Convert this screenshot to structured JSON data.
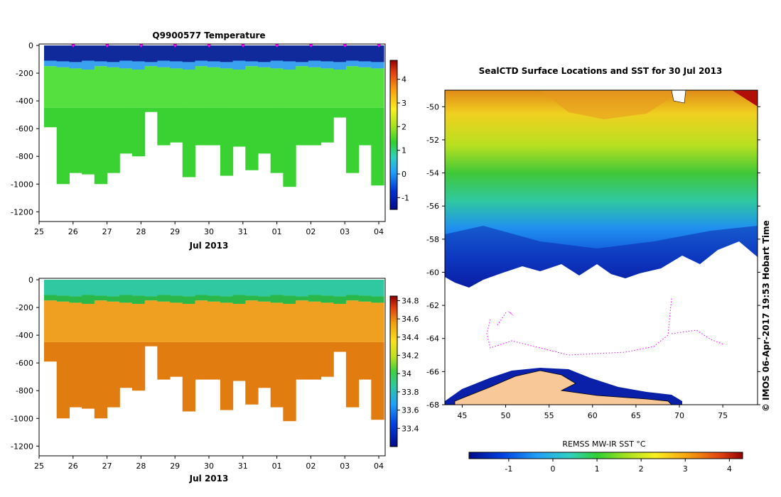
{
  "chart_data": [
    {
      "type": "heatmap",
      "title": "Q9900577  Temperature",
      "xlabel": "Jul 2013",
      "ylabel": "",
      "x_ticks": [
        "25",
        "26",
        "27",
        "28",
        "29",
        "30",
        "31",
        "01",
        "02",
        "03",
        "04"
      ],
      "y_ticks": [
        0,
        -200,
        -400,
        -600,
        -800,
        -1000,
        -1200
      ],
      "ylim": [
        -1270,
        0
      ],
      "colorbar_ticks": [
        "4",
        "3",
        "2",
        "1",
        "0",
        "-1"
      ],
      "colorbar_range": [
        -1.5,
        4.8
      ],
      "colors": {
        "surface": "#102a9c",
        "layer": "#3aa0f0",
        "deep": "#3ad232",
        "mid": "#55e040",
        "marker": "#ff00ff"
      },
      "profile_max_depth": [
        590,
        1000,
        920,
        930,
        1000,
        920,
        780,
        800,
        480,
        720,
        700,
        950,
        720,
        720,
        940,
        730,
        900,
        780,
        920,
        1020,
        720,
        720,
        700,
        520,
        920,
        720,
        1010
      ]
    },
    {
      "type": "heatmap",
      "title": "",
      "xlabel": "Jul 2013",
      "ylabel": "",
      "x_ticks": [
        "25",
        "26",
        "27",
        "28",
        "29",
        "30",
        "31",
        "01",
        "02",
        "03",
        "04"
      ],
      "y_ticks": [
        0,
        -200,
        -400,
        -600,
        -800,
        -1000,
        -1200
      ],
      "ylim": [
        -1270,
        0
      ],
      "colorbar_ticks": [
        "34.8",
        "34.6",
        "34.4",
        "34.2",
        "34",
        "33.8",
        "33.6",
        "33.4"
      ],
      "colorbar_range": [
        33.2,
        34.85
      ],
      "colors": {
        "surface": "#30c8a0",
        "layer": "#2ab84a",
        "deep": "#e07c10",
        "mid": "#f0a020"
      },
      "profile_max_depth": [
        590,
        1000,
        920,
        930,
        1000,
        920,
        780,
        800,
        480,
        720,
        700,
        950,
        720,
        720,
        940,
        730,
        900,
        780,
        920,
        1020,
        720,
        720,
        700,
        520,
        920,
        720,
        1010
      ]
    },
    {
      "type": "heatmap",
      "title": "SealCTD Surface Locations and SST for 30 Jul 2013",
      "xlabel": "REMSS MW-IR SST °C",
      "ylabel": "",
      "x_ticks": [
        "45",
        "50",
        "55",
        "60",
        "65",
        "70",
        "75"
      ],
      "y_ticks": [
        "-50",
        "-52",
        "-54",
        "-56",
        "-58",
        "-60",
        "-62",
        "-64",
        "-66",
        "-68"
      ],
      "xlim": [
        43,
        79
      ],
      "ylim": [
        -68,
        -49
      ],
      "colorbar_ticks": [
        "-1",
        "0",
        "1",
        "2",
        "3",
        "4"
      ],
      "colorbar_range": [
        -1.9,
        4.3
      ],
      "annotation": "© IMOS 06-Apr-2017 19:53 Hobart Time",
      "colors": {
        "land": "#f9c898",
        "ice_edge": "#102a9c",
        "track": "#ff00ff"
      }
    }
  ]
}
